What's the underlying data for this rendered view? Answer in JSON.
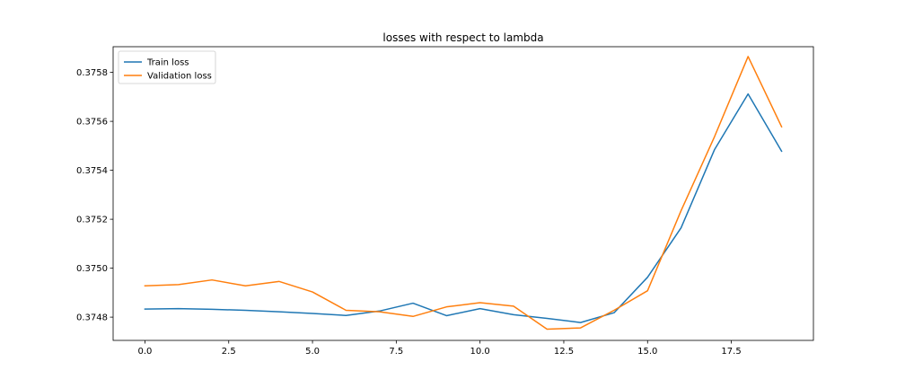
{
  "chart_data": {
    "type": "line",
    "title": "losses with respect to lambda",
    "xlabel": "",
    "ylabel": "",
    "xlim": [
      -0.95,
      19.95
    ],
    "ylim": [
      0.374705,
      0.375905
    ],
    "xticks": [
      0.0,
      2.5,
      5.0,
      7.5,
      10.0,
      12.5,
      15.0,
      17.5
    ],
    "xtick_labels": [
      "0.0",
      "2.5",
      "5.0",
      "7.5",
      "10.0",
      "12.5",
      "15.0",
      "17.5"
    ],
    "yticks": [
      0.3748,
      0.375,
      0.3752,
      0.3754,
      0.3756,
      0.3758
    ],
    "ytick_labels": [
      "0.3748",
      "0.3750",
      "0.3752",
      "0.3754",
      "0.3756",
      "0.3758"
    ],
    "grid": false,
    "legend_position": "top-left",
    "x": [
      0,
      1,
      2,
      3,
      4,
      5,
      6,
      7,
      8,
      9,
      10,
      11,
      12,
      13,
      14,
      15,
      16,
      17,
      18,
      19
    ],
    "series": [
      {
        "name": "Train loss",
        "color": "#1f77b4",
        "values": [
          0.374833,
          0.374835,
          0.374832,
          0.374828,
          0.374822,
          0.374815,
          0.374807,
          0.374825,
          0.374857,
          0.374806,
          0.374835,
          0.37481,
          0.374795,
          0.374778,
          0.374818,
          0.374963,
          0.375165,
          0.375485,
          0.375712,
          0.375478
        ]
      },
      {
        "name": "Validation loss",
        "color": "#ff7f0e",
        "values": [
          0.374928,
          0.374933,
          0.374952,
          0.374928,
          0.374946,
          0.374903,
          0.374828,
          0.374822,
          0.374803,
          0.374842,
          0.374859,
          0.374845,
          0.374751,
          0.374756,
          0.374828,
          0.374908,
          0.375235,
          0.375538,
          0.375865,
          0.375578
        ]
      }
    ]
  }
}
